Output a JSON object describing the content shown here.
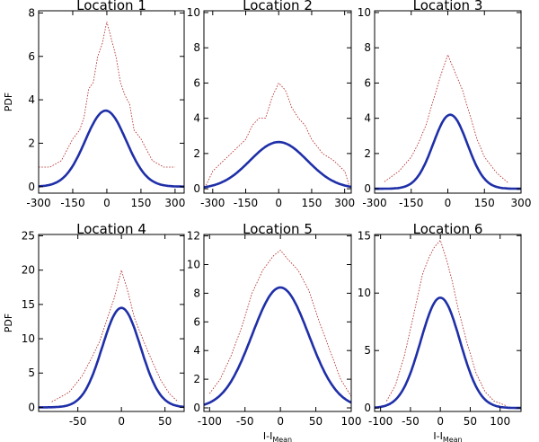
{
  "chart_data": [
    {
      "type": "line",
      "title": "Location 1",
      "ylabel": "PDF",
      "xlabel": "",
      "xlim": [
        -300,
        340
      ],
      "ylim": [
        -0.3,
        8.1
      ],
      "xticks": [
        -300,
        -150,
        0,
        150,
        300
      ],
      "xticklabels": [
        "-300",
        "-150",
        "0",
        "150",
        "300"
      ],
      "yticks": [
        0,
        2,
        4,
        6,
        8
      ],
      "yticklabels": [
        "0",
        "2",
        "4",
        "6",
        "8"
      ],
      "series": [
        {
          "kind": "histogram",
          "color": "#b22222",
          "style": "dotted",
          "x": [
            -300,
            -250,
            -200,
            -180,
            -150,
            -120,
            -100,
            -80,
            -60,
            -40,
            -20,
            0,
            20,
            40,
            60,
            80,
            100,
            120,
            150,
            180,
            200,
            250,
            300
          ],
          "y": [
            0.9,
            0.9,
            1.2,
            1.6,
            2.2,
            2.6,
            3.2,
            4.5,
            4.8,
            6,
            6.6,
            7.6,
            6.8,
            6,
            4.8,
            4.2,
            3.8,
            2.6,
            2.2,
            1.6,
            1.2,
            0.9,
            0.9
          ]
        },
        {
          "kind": "gaussian",
          "color": "#1f2fa8",
          "style": "solid",
          "amplitude": 3.5,
          "mean": -5,
          "sigma": 90
        }
      ]
    },
    {
      "type": "line",
      "title": "Location 2",
      "ylabel": "",
      "xlabel": "",
      "xlim": [
        -340,
        330
      ],
      "ylim": [
        -0.25,
        10.1
      ],
      "xticks": [
        -300,
        -150,
        0,
        150,
        300
      ],
      "xticklabels": [
        "-300",
        "-150",
        "0",
        "150",
        "300"
      ],
      "yticks": [
        0,
        2,
        4,
        6,
        8,
        10
      ],
      "yticklabels": [
        "0",
        "2",
        "4",
        "6",
        "8",
        "10"
      ],
      "series": [
        {
          "kind": "histogram",
          "color": "#b22222",
          "style": "dotted",
          "x": [
            -330,
            -300,
            -250,
            -200,
            -150,
            -120,
            -90,
            -60,
            -30,
            0,
            30,
            60,
            90,
            120,
            150,
            200,
            250,
            300,
            320
          ],
          "y": [
            0.2,
            1.0,
            1.6,
            2.2,
            2.8,
            3.6,
            4.0,
            4.0,
            5.2,
            6.0,
            5.6,
            4.6,
            4.0,
            3.6,
            2.8,
            2.0,
            1.6,
            1.0,
            0.2
          ]
        },
        {
          "kind": "gaussian",
          "color": "#1f2fa8",
          "style": "solid",
          "amplitude": 2.65,
          "mean": 0,
          "sigma": 130
        }
      ]
    },
    {
      "type": "line",
      "title": "Location 3",
      "ylabel": "",
      "xlabel": "",
      "xlim": [
        -300,
        300
      ],
      "ylim": [
        -0.25,
        10.1
      ],
      "xticks": [
        -300,
        -150,
        0,
        150,
        300
      ],
      "xticklabels": [
        "-300",
        "-150",
        "0",
        "150",
        "300"
      ],
      "yticks": [
        0,
        2,
        4,
        6,
        8,
        10
      ],
      "yticklabels": [
        "0",
        "2",
        "4",
        "6",
        "8",
        "10"
      ],
      "series": [
        {
          "kind": "histogram",
          "color": "#b22222",
          "style": "dotted",
          "x": [
            -260,
            -200,
            -150,
            -120,
            -90,
            -60,
            -30,
            0,
            30,
            60,
            90,
            120,
            150,
            200,
            250
          ],
          "y": [
            0.4,
            1.0,
            1.8,
            2.6,
            3.6,
            5.0,
            6.4,
            7.6,
            6.6,
            5.6,
            4.2,
            2.8,
            1.8,
            0.9,
            0.3
          ]
        },
        {
          "kind": "gaussian",
          "color": "#1f2fa8",
          "style": "solid",
          "amplitude": 4.2,
          "mean": 10,
          "sigma": 70
        }
      ]
    },
    {
      "type": "line",
      "title": "Location 4",
      "ylabel": "PDF",
      "xlabel": "",
      "xlim": [
        -95,
        72
      ],
      "ylim": [
        -0.6,
        25.2
      ],
      "xticks": [
        -50,
        0,
        50
      ],
      "xticklabels": [
        "-50",
        "0",
        "50"
      ],
      "yticks": [
        0,
        5,
        10,
        15,
        20,
        25
      ],
      "yticklabels": [
        "0",
        "5",
        "10",
        "15",
        "20",
        "25"
      ],
      "series": [
        {
          "kind": "histogram",
          "color": "#b22222",
          "style": "dotted",
          "x": [
            -80,
            -60,
            -45,
            -35,
            -25,
            -15,
            -8,
            0,
            8,
            15,
            25,
            35,
            45,
            55,
            65
          ],
          "y": [
            0.8,
            2.2,
            4.6,
            7.0,
            9.6,
            13.4,
            16.0,
            20.0,
            16.6,
            13.0,
            9.8,
            6.8,
            4.0,
            2.0,
            0.8
          ]
        },
        {
          "kind": "gaussian",
          "color": "#1f2fa8",
          "style": "solid",
          "amplitude": 14.5,
          "mean": 0,
          "sigma": 22
        }
      ]
    },
    {
      "type": "line",
      "title": "Location 5",
      "ylabel": "",
      "xlabel": "I-I_Mean",
      "xlim": [
        -108,
        100
      ],
      "ylim": [
        -0.25,
        12.1
      ],
      "xticks": [
        -100,
        -50,
        0,
        50,
        100
      ],
      "xticklabels": [
        "-100",
        "-50",
        "0",
        "50",
        "100"
      ],
      "yticks": [
        0,
        2,
        4,
        6,
        8,
        10,
        12
      ],
      "yticklabels": [
        "0",
        "2",
        "4",
        "6",
        "8",
        "10",
        "12"
      ],
      "series": [
        {
          "kind": "histogram",
          "color": "#b22222",
          "style": "dotted",
          "x": [
            -100,
            -85,
            -70,
            -55,
            -40,
            -25,
            -10,
            0,
            10,
            25,
            40,
            55,
            70,
            85,
            100
          ],
          "y": [
            1.0,
            2.0,
            3.6,
            5.6,
            8.0,
            9.6,
            10.6,
            11.0,
            10.4,
            9.6,
            8.2,
            6.0,
            4.0,
            2.0,
            0.8
          ]
        },
        {
          "kind": "gaussian",
          "color": "#1f2fa8",
          "style": "solid",
          "amplitude": 8.4,
          "mean": 0,
          "sigma": 40
        }
      ]
    },
    {
      "type": "line",
      "title": "Location 6",
      "ylabel": "",
      "xlabel": "I-I_Mean",
      "xlim": [
        -110,
        135
      ],
      "ylim": [
        -0.3,
        15.1
      ],
      "xticks": [
        -100,
        -50,
        0,
        50,
        100
      ],
      "xticklabels": [
        "-100",
        "-50",
        "0",
        "50",
        "100"
      ],
      "yticks": [
        0,
        5,
        10,
        15
      ],
      "yticklabels": [
        "0",
        "5",
        "10",
        "15"
      ],
      "series": [
        {
          "kind": "histogram",
          "color": "#b22222",
          "style": "dotted",
          "x": [
            -90,
            -75,
            -60,
            -45,
            -30,
            -20,
            -10,
            0,
            10,
            20,
            30,
            45,
            60,
            75,
            90,
            110
          ],
          "y": [
            0.6,
            2.0,
            4.6,
            8.0,
            11.6,
            13.0,
            14.0,
            14.6,
            13.0,
            11.0,
            8.6,
            5.6,
            3.0,
            1.4,
            0.6,
            0.2
          ]
        },
        {
          "kind": "gaussian",
          "color": "#1f2fa8",
          "style": "solid",
          "amplitude": 9.6,
          "mean": 0,
          "sigma": 33
        }
      ]
    }
  ]
}
